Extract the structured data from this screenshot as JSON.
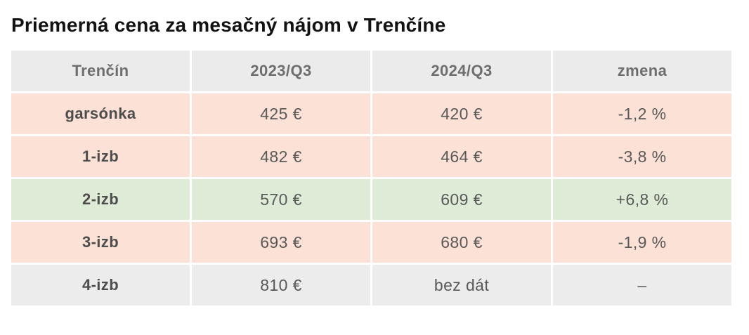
{
  "title": "Priemerná cena za mesačný nájom v Trenčíne",
  "chart_data": {
    "type": "table",
    "title": "Priemerná cena za mesačný nájom v Trenčíne",
    "columns": [
      "Trenčín",
      "2023/Q3",
      "2024/Q3",
      "zmena"
    ],
    "rows": [
      [
        "garsónka",
        "425 €",
        "420 €",
        "-1,2 %"
      ],
      [
        "1-izb",
        "482 €",
        "464 €",
        "-3,8 %"
      ],
      [
        "2-izb",
        "570 €",
        "609 €",
        "+6,8 %"
      ],
      [
        "3-izb",
        "693 €",
        "680 €",
        "-1,9 %"
      ],
      [
        "4-izb",
        "810 €",
        "bez dát",
        "–"
      ]
    ],
    "row_tones": [
      "negative",
      "negative",
      "positive",
      "negative",
      "no-data"
    ],
    "values_numeric": {
      "2023_q3_eur": [
        425,
        482,
        570,
        693,
        810
      ],
      "2024_q3_eur": [
        420,
        464,
        609,
        680,
        null
      ],
      "change_pct": [
        -1.2,
        -3.8,
        6.8,
        -1.9,
        null
      ]
    }
  },
  "colors": {
    "title_text": "#121212",
    "header_row_bg": "#ebebeb",
    "header_text": "#6e6e6e",
    "label_text": "#4d4d4d",
    "value_text": "#595959",
    "negative_row_bg": "#fce1d7",
    "positive_row_bg": "#deebd6",
    "no_data_row_bg": "#ececec"
  }
}
